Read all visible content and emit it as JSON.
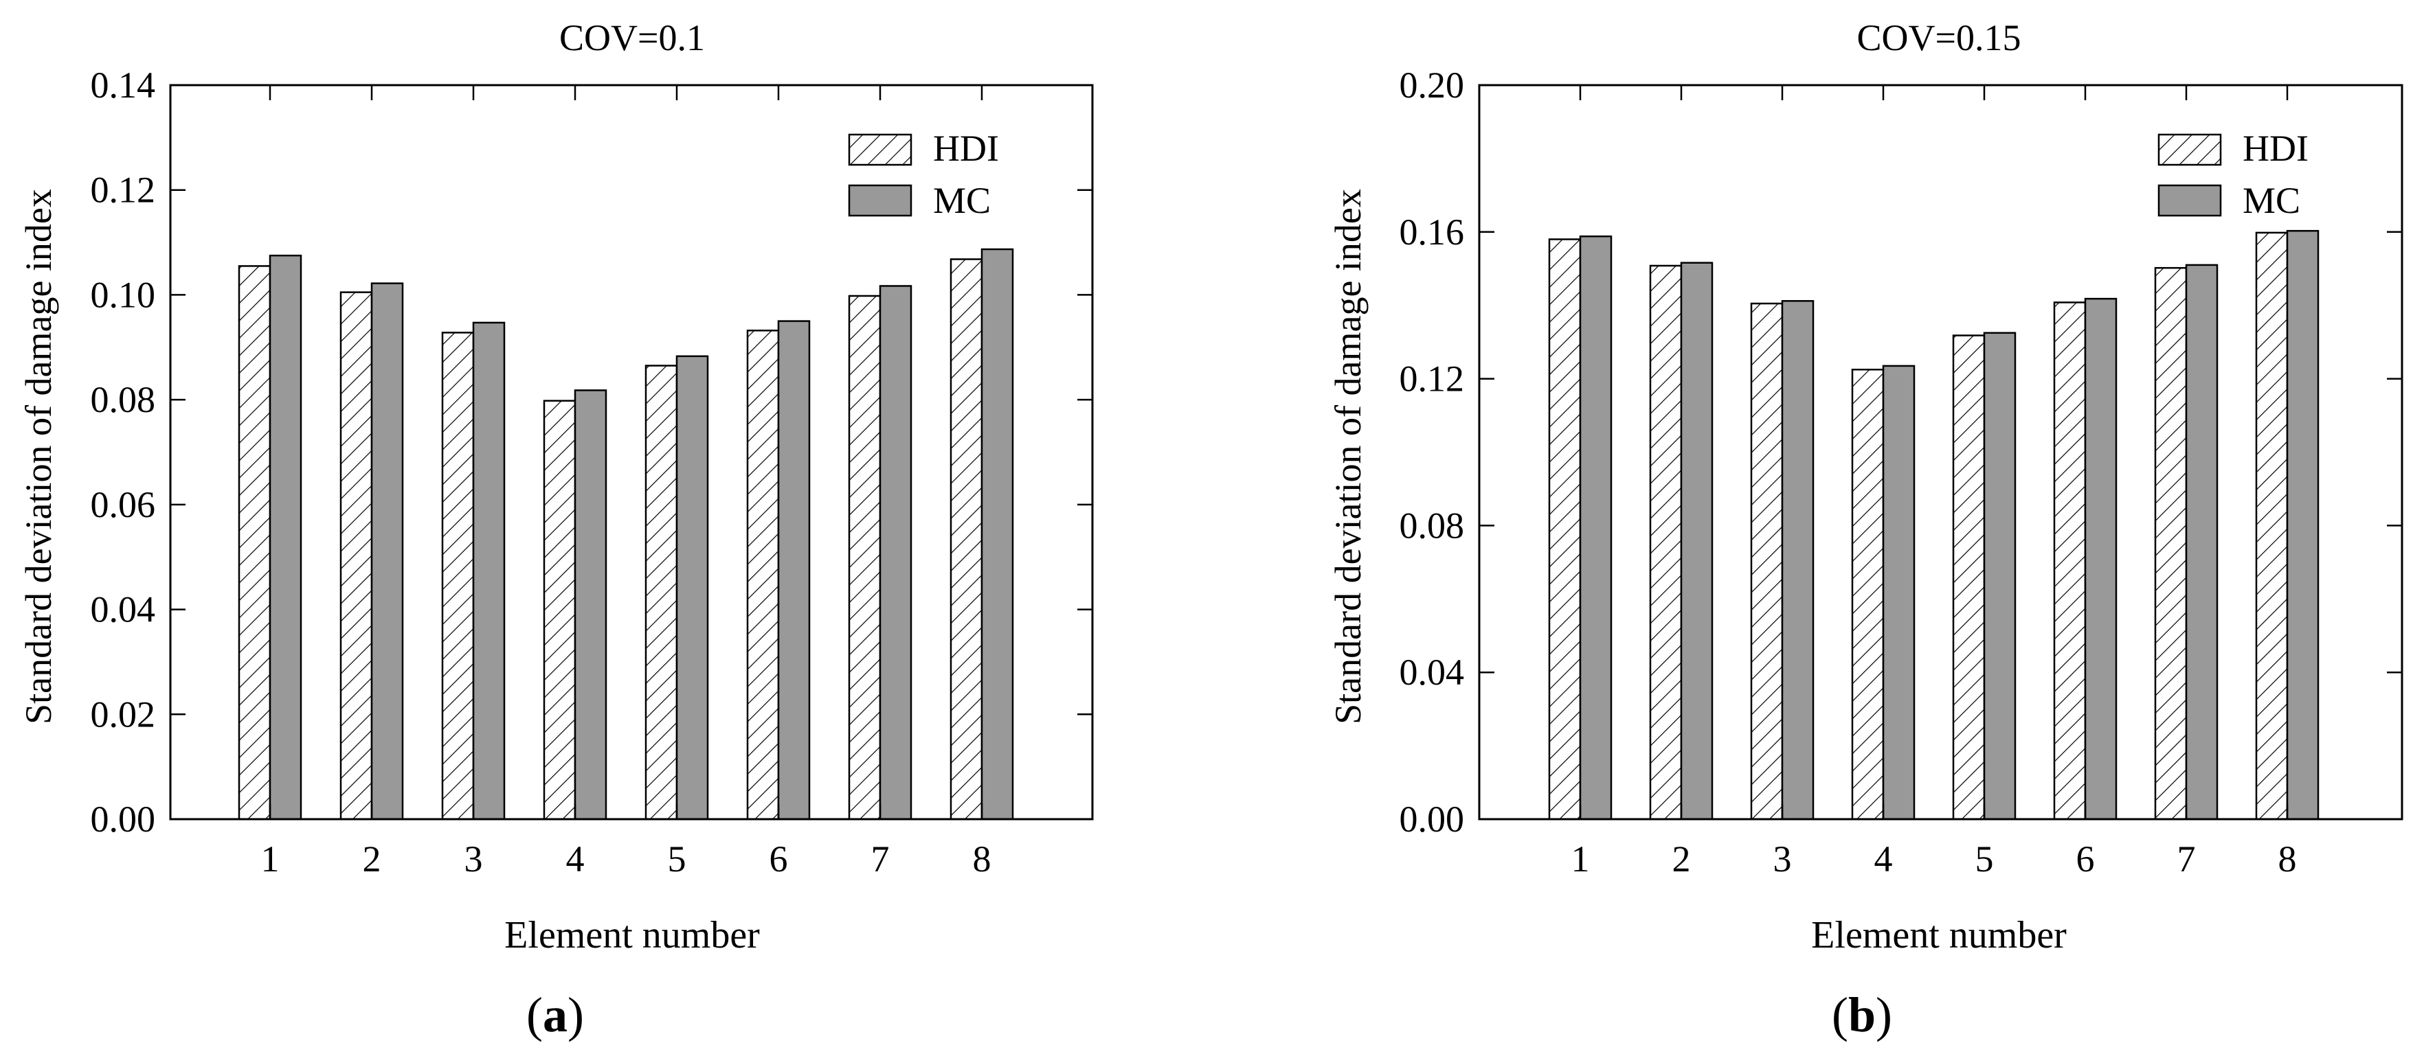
{
  "chart_data": [
    {
      "type": "bar",
      "title": "COV=0.1",
      "xlabel": "Element number",
      "ylabel": "Standard deviation of  damage index",
      "categories": [
        "1",
        "2",
        "3",
        "4",
        "5",
        "6",
        "7",
        "8"
      ],
      "ylim": [
        0,
        0.14
      ],
      "yticks": [
        "0.00",
        "0.02",
        "0.04",
        "0.06",
        "0.08",
        "0.10",
        "0.12",
        "0.14"
      ],
      "legend_position": "top-right",
      "series": [
        {
          "name": "HDI",
          "pattern": "hatched",
          "values": [
            0.1055,
            0.1005,
            0.0928,
            0.0798,
            0.0865,
            0.0932,
            0.0998,
            0.1068
          ]
        },
        {
          "name": "MC",
          "pattern": "gray",
          "values": [
            0.1075,
            0.1022,
            0.0947,
            0.0818,
            0.0883,
            0.095,
            0.1017,
            0.1087
          ]
        }
      ],
      "panel_label": "a"
    },
    {
      "type": "bar",
      "title": "COV=0.15",
      "xlabel": "Element number",
      "ylabel": "Standard deviation of  damage index",
      "categories": [
        "1",
        "2",
        "3",
        "4",
        "5",
        "6",
        "7",
        "8"
      ],
      "ylim": [
        0,
        0.2
      ],
      "yticks": [
        "0.00",
        "0.04",
        "0.08",
        "0.12",
        "0.16",
        "0.20"
      ],
      "legend_position": "top-right",
      "series": [
        {
          "name": "HDI",
          "pattern": "hatched",
          "values": [
            0.158,
            0.1508,
            0.1405,
            0.1225,
            0.1318,
            0.1408,
            0.1502,
            0.1598
          ]
        },
        {
          "name": "MC",
          "pattern": "gray",
          "values": [
            0.1588,
            0.1516,
            0.1412,
            0.1235,
            0.1325,
            0.1418,
            0.151,
            0.1603
          ]
        }
      ],
      "panel_label": "b"
    }
  ],
  "colors": {
    "mc_fill": "#999999",
    "hdi_fill": "#ffffff",
    "axis": "#000000"
  }
}
